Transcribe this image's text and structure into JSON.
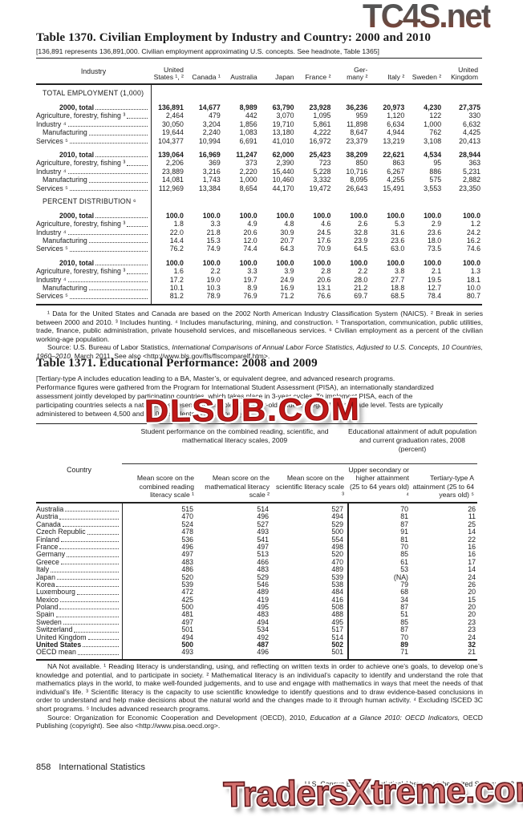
{
  "colors": {
    "wm_red": "#c21717",
    "wm_salmon": "#d4706e"
  },
  "watermarks": {
    "top": "TC4S.net",
    "middle": "DLSUB.COM",
    "bottom": "TradersXtreme.com"
  },
  "t1370": {
    "title": "Table 1370. Civilian Employment by Industry and Country: 2000 and 2010",
    "headnote": "[136,891 represents 136,891,000. Civilian employment approximating U.S. concepts. See headnote, Table 1365]",
    "stub_head": "Industry",
    "cols": [
      {
        "top": "United",
        "bottom": "States ¹, ²"
      },
      {
        "top": "",
        "bottom": "Canada ¹"
      },
      {
        "top": "",
        "bottom": "Australia"
      },
      {
        "top": "",
        "bottom": "Japan"
      },
      {
        "top": "",
        "bottom": "France ²"
      },
      {
        "top": "Ger-",
        "bottom": "many ²"
      },
      {
        "top": "",
        "bottom": "Italy ²"
      },
      {
        "top": "",
        "bottom": "Sweden ²"
      },
      {
        "top": "United",
        "bottom": "Kingdom"
      }
    ],
    "sections": [
      {
        "heading": "TOTAL EMPLOYMENT (1,000)",
        "rows": [
          {
            "label": "2000, total",
            "bold": true,
            "gap": true,
            "ind": 2,
            "cells": [
              "136,891",
              "14,677",
              "8,989",
              "63,790",
              "23,928",
              "36,236",
              "20,973",
              "4,230",
              "27,375"
            ]
          },
          {
            "label": "Agriculture, forestry, fishing ³",
            "cells": [
              "2,464",
              "479",
              "442",
              "3,070",
              "1,095",
              "959",
              "1,120",
              "122",
              "330"
            ]
          },
          {
            "label": "Industry ⁴",
            "cells": [
              "30,050",
              "3,204",
              "1,856",
              "19,710",
              "5,861",
              "11,898",
              "6,634",
              "1,000",
              "6,632"
            ]
          },
          {
            "label": "Manufacturing",
            "ind": 1,
            "cells": [
              "19,644",
              "2,240",
              "1,083",
              "13,180",
              "4,222",
              "8,647",
              "4,944",
              "762",
              "4,425"
            ]
          },
          {
            "label": "Services ⁵",
            "cells": [
              "104,377",
              "10,994",
              "6,691",
              "41,010",
              "16,972",
              "23,379",
              "13,219",
              "3,108",
              "20,413"
            ]
          },
          {
            "label": "2010, total",
            "bold": true,
            "gap": true,
            "ind": 2,
            "cells": [
              "139,064",
              "16,969",
              "11,247",
              "62,000",
              "25,423",
              "38,209",
              "22,621",
              "4,534",
              "28,944"
            ]
          },
          {
            "label": "Agriculture, forestry, fishing ³",
            "cells": [
              "2,206",
              "369",
              "373",
              "2,390",
              "723",
              "850",
              "863",
              "95",
              "363"
            ]
          },
          {
            "label": "Industry ⁴",
            "cells": [
              "23,889",
              "3,216",
              "2,220",
              "15,440",
              "5,228",
              "10,716",
              "6,267",
              "886",
              "5,231"
            ]
          },
          {
            "label": "Manufacturing",
            "ind": 1,
            "cells": [
              "14,081",
              "1,743",
              "1,000",
              "10,460",
              "3,332",
              "8,095",
              "4,255",
              "575",
              "2,882"
            ]
          },
          {
            "label": "Services ⁵",
            "cells": [
              "112,969",
              "13,384",
              "8,654",
              "44,170",
              "19,472",
              "26,643",
              "15,491",
              "3,553",
              "23,350"
            ]
          }
        ]
      },
      {
        "heading": "PERCENT DISTRIBUTION ⁶",
        "rows": [
          {
            "label": "2000, total",
            "bold": true,
            "gap": true,
            "ind": 2,
            "cells": [
              "100.0",
              "100.0",
              "100.0",
              "100.0",
              "100.0",
              "100.0",
              "100.0",
              "100.0",
              "100.0"
            ]
          },
          {
            "label": "Agriculture, forestry, fishing ³",
            "cells": [
              "1.8",
              "3.3",
              "4.9",
              "4.8",
              "4.6",
              "2.6",
              "5.3",
              "2.9",
              "1.2"
            ]
          },
          {
            "label": "Industry ⁴",
            "cells": [
              "22.0",
              "21.8",
              "20.6",
              "30.9",
              "24.5",
              "32.8",
              "31.6",
              "23.6",
              "24.2"
            ]
          },
          {
            "label": "Manufacturing",
            "ind": 1,
            "cells": [
              "14.4",
              "15.3",
              "12.0",
              "20.7",
              "17.6",
              "23.9",
              "23.6",
              "18.0",
              "16.2"
            ]
          },
          {
            "label": "Services ⁵",
            "cells": [
              "76.2",
              "74.9",
              "74.4",
              "64.3",
              "70.9",
              "64.5",
              "63.0",
              "73.5",
              "74.6"
            ]
          },
          {
            "label": "2010, total",
            "bold": true,
            "gap": true,
            "ind": 2,
            "cells": [
              "100.0",
              "100.0",
              "100.0",
              "100.0",
              "100.0",
              "100.0",
              "100.0",
              "100.0",
              "100.0"
            ]
          },
          {
            "label": "Agriculture, forestry, fishing ³",
            "cells": [
              "1.6",
              "2.2",
              "3.3",
              "3.9",
              "2.8",
              "2.2",
              "3.8",
              "2.1",
              "1.3"
            ]
          },
          {
            "label": "Industry ⁴",
            "cells": [
              "17.2",
              "19.0",
              "19.7",
              "24.9",
              "20.6",
              "28.0",
              "27.7",
              "19.5",
              "18.1"
            ]
          },
          {
            "label": "Manufacturing",
            "ind": 1,
            "cells": [
              "10.1",
              "10.3",
              "8.9",
              "16.9",
              "13.1",
              "21.2",
              "18.8",
              "12.7",
              "10.0"
            ]
          },
          {
            "label": "Services ⁵",
            "cells": [
              "81.2",
              "78.9",
              "76.9",
              "71.2",
              "76.6",
              "69.7",
              "68.5",
              "78.4",
              "80.7"
            ]
          }
        ]
      }
    ],
    "footnotes": "¹ Data for the United States and Canada are based on the 2002 North American Industry Classification System (NAICS). ² Break in series between 2000 and 2010. ³ Includes hunting. ⁴ Includes manufacturing, mining, and construction. ⁵ Transportation, communication, public utilities, trade, finance, public administration, private household services, and miscellaneous services. ⁶ Civilian employment as a percent of the civilian working-age population.",
    "source_prefix": "Source: U.S. Bureau of Labor Statistics, ",
    "source_italic": "International Comparisons of Annual Labor Force Statistics, Adjusted to U.S. Concepts, 10 Countries, 1960–2010,",
    "source_suffix": " March 2011. See also <http://www.bls.gov/fls/flscomparelf.htm>."
  },
  "t1371": {
    "title": "Table 1371. Educational Performance: 2008 and 2009",
    "headnote_lines": [
      "[Tertiary-type A includes education leading to a BA, Master’s, or equivalent degree, and advanced research programs.",
      "Performance figures were gathered from the Program for International Student Assessment (PISA), an internationally standardized",
      "assessment jointly developed by participating countries, which takes place in 3-year cycles. To implement PISA, each of the",
      "participating countries selects a nationally representative sample of 15-year-old students, regardless of grade level. Tests are typically",
      "administered to between 4,500 and 10,000 students in each country.]"
    ],
    "stub_head": "Country",
    "span1": "Student performance on the combined reading, scientific, and mathematical literacy scales, 2009",
    "span2": "Educational attainment of adult population and current graduation rates, 2008 (percent)",
    "subcols": [
      "Mean score on the combined reading literacy scale ¹",
      "Mean score on the mathematical literacy scale ²",
      "Mean score on the scientific literacy scale ³",
      "Upper secondary or higher attainment (25 to 64 years old) ⁴",
      "Tertiary-type A attainment (25 to 64 years old) ⁵"
    ],
    "rows": [
      {
        "label": "Australia",
        "cells": [
          "515",
          "514",
          "527",
          "70",
          "26"
        ]
      },
      {
        "label": "Austria",
        "cells": [
          "470",
          "496",
          "494",
          "81",
          "11"
        ]
      },
      {
        "label": "Canada",
        "cells": [
          "524",
          "527",
          "529",
          "87",
          "25"
        ]
      },
      {
        "label": "Czech Republic",
        "cells": [
          "478",
          "493",
          "500",
          "91",
          "14"
        ]
      },
      {
        "label": "Finland",
        "cells": [
          "536",
          "541",
          "554",
          "81",
          "22"
        ]
      },
      {
        "label": "France",
        "cells": [
          "496",
          "497",
          "498",
          "70",
          "16"
        ]
      },
      {
        "label": "Germany",
        "cells": [
          "497",
          "513",
          "520",
          "85",
          "16"
        ]
      },
      {
        "label": "Greece",
        "cells": [
          "483",
          "466",
          "470",
          "61",
          "17"
        ]
      },
      {
        "label": "Italy",
        "cells": [
          "486",
          "483",
          "489",
          "53",
          "14"
        ]
      },
      {
        "label": "Japan",
        "cells": [
          "520",
          "529",
          "539",
          "(NA)",
          "24"
        ]
      },
      {
        "label": "Korea",
        "cells": [
          "539",
          "546",
          "538",
          "79",
          "26"
        ]
      },
      {
        "label": "Luxembourg",
        "cells": [
          "472",
          "489",
          "484",
          "68",
          "20"
        ]
      },
      {
        "label": "Mexico",
        "cells": [
          "425",
          "419",
          "416",
          "34",
          "15"
        ]
      },
      {
        "label": "Poland",
        "cells": [
          "500",
          "495",
          "508",
          "87",
          "20"
        ]
      },
      {
        "label": "Spain",
        "cells": [
          "481",
          "483",
          "488",
          "51",
          "20"
        ]
      },
      {
        "label": "Sweden",
        "cells": [
          "497",
          "494",
          "495",
          "85",
          "23"
        ]
      },
      {
        "label": "Switzerland",
        "cells": [
          "501",
          "534",
          "517",
          "87",
          "23"
        ]
      },
      {
        "label": "United Kingdom",
        "cells": [
          "494",
          "492",
          "514",
          "70",
          "24"
        ]
      },
      {
        "label": "United States",
        "bold": true,
        "cells": [
          "500",
          "487",
          "502",
          "89",
          "32"
        ]
      },
      {
        "label": "OECD mean",
        "cells": [
          "493",
          "496",
          "501",
          "71",
          "21"
        ]
      }
    ],
    "footnotes": "NA Not available. ¹ Reading literacy is understanding, using, and reflecting on written texts in order to achieve one’s goals, to develop one’s knowledge and potential, and to participate in society. ² Mathematical literacy is an individual’s capacity to identify and understand the role that mathematics plays in the world, to make well-founded judgements, and to use and engage with mathematics in ways that meet the needs of that individual’s life. ³ Scientific literacy is the capacity to use scientific knowledge to identify questions and to draw evidence-based conclusions in order to understand and help make decisions about the natural world and the changes made to it through human activity. ⁴ Excluding ISCED 3C short programs. ⁵ Includes advanced research programs.",
    "source_prefix": "Source: Organization for Economic Cooperation and Development (OECD), 2010, ",
    "source_italic": "Education at a Glance 2010: OECD Indicators,",
    "source_suffix": " OECD Publishing (copyright). See also <http://www.pisa.oecd.org>."
  },
  "footer": {
    "page": "858",
    "section": "International Statistics",
    "source": "U.S. Census Bureau, Statistical Abstract of the United States: 2012"
  }
}
